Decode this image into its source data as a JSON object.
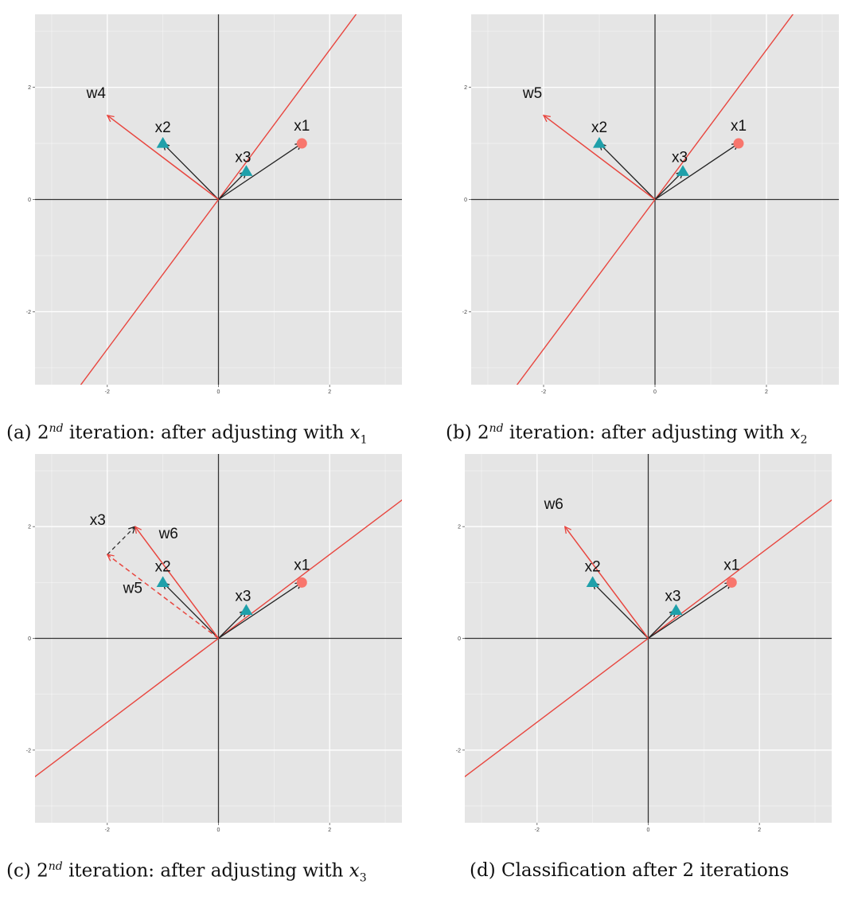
{
  "colors": {
    "panel_bg": "#e5e5e5",
    "grid": "#ffffff",
    "axis": "#333333",
    "red": "#e8463f",
    "point_red": "#f8766d",
    "point_teal": "#1fa0aa",
    "arrow": "#222222"
  },
  "panels": [
    {
      "caption": {
        "prefix": "(a) 2",
        "sup": "nd",
        "middle": " iteration: after adjusting with ",
        "var": "x",
        "sub": "1"
      },
      "chart_data": {
        "type": "scatter",
        "xlim": [
          -3.3,
          3.3
        ],
        "ylim": [
          -3.3,
          3.3
        ],
        "ticks": [
          -2,
          0,
          2
        ],
        "tick_labels": [
          "-2",
          "0",
          "2"
        ],
        "points": [
          {
            "label": "x1",
            "x": 1.5,
            "y": 1.0,
            "shape": "circle"
          },
          {
            "label": "x2",
            "x": -1.0,
            "y": 1.0,
            "shape": "triangle"
          },
          {
            "label": "x3",
            "x": 0.5,
            "y": 0.5,
            "shape": "triangle"
          }
        ],
        "weights": [
          {
            "label": "w4",
            "x": -2.0,
            "y": 1.5,
            "dashed": false
          }
        ],
        "extra_vectors": [],
        "boundary_slope": 1.3333
      }
    },
    {
      "caption": {
        "prefix": "(b) 2",
        "sup": "nd",
        "middle": " iteration: after adjusting with ",
        "var": "x",
        "sub": "2"
      },
      "chart_data": {
        "type": "scatter",
        "xlim": [
          -3.3,
          3.3
        ],
        "ylim": [
          -3.3,
          3.3
        ],
        "ticks": [
          -2,
          0,
          2
        ],
        "tick_labels": [
          "-2",
          "0",
          "2"
        ],
        "points": [
          {
            "label": "x1",
            "x": 1.5,
            "y": 1.0,
            "shape": "circle"
          },
          {
            "label": "x2",
            "x": -1.0,
            "y": 1.0,
            "shape": "triangle"
          },
          {
            "label": "x3",
            "x": 0.5,
            "y": 0.5,
            "shape": "triangle"
          }
        ],
        "weights": [
          {
            "label": "w5",
            "x": -2.0,
            "y": 1.5,
            "dashed": false
          }
        ],
        "extra_vectors": [],
        "boundary_slope": 1.3333
      }
    },
    {
      "caption": {
        "prefix": "(c) 2",
        "sup": "nd",
        "middle": " iteration: after adjusting with ",
        "var": "x",
        "sub": "3"
      },
      "chart_data": {
        "type": "scatter",
        "xlim": [
          -3.3,
          3.3
        ],
        "ylim": [
          -3.3,
          3.3
        ],
        "ticks": [
          -2,
          0,
          2
        ],
        "tick_labels": [
          "-2",
          "0",
          "2"
        ],
        "points": [
          {
            "label": "x1",
            "x": 1.5,
            "y": 1.0,
            "shape": "circle"
          },
          {
            "label": "x2",
            "x": -1.0,
            "y": 1.0,
            "shape": "triangle"
          },
          {
            "label": "x3",
            "x": 0.5,
            "y": 0.5,
            "shape": "triangle"
          }
        ],
        "weights": [
          {
            "label": "w6",
            "x": -1.5,
            "y": 2.0,
            "dashed": false
          },
          {
            "label": "w5",
            "x": -2.0,
            "y": 1.5,
            "dashed": true
          }
        ],
        "extra_vectors": [
          {
            "label": "x3",
            "x0": -2.0,
            "y0": 1.5,
            "x1": -1.5,
            "y1": 2.0
          }
        ],
        "boundary_slope": 0.75
      }
    },
    {
      "caption": {
        "prefix": "(d) Classification after 2 iterations",
        "sup": "",
        "middle": "",
        "var": "",
        "sub": ""
      },
      "chart_data": {
        "type": "scatter",
        "xlim": [
          -3.3,
          3.3
        ],
        "ylim": [
          -3.3,
          3.3
        ],
        "ticks": [
          -2,
          0,
          2
        ],
        "tick_labels": [
          "-2",
          "0",
          "2"
        ],
        "points": [
          {
            "label": "x1",
            "x": 1.5,
            "y": 1.0,
            "shape": "circle"
          },
          {
            "label": "x2",
            "x": -1.0,
            "y": 1.0,
            "shape": "triangle"
          },
          {
            "label": "x3",
            "x": 0.5,
            "y": 0.5,
            "shape": "triangle"
          }
        ],
        "weights": [
          {
            "label": "w6",
            "x": -1.5,
            "y": 2.0,
            "dashed": false
          }
        ],
        "extra_vectors": [],
        "boundary_slope": 0.75
      }
    }
  ]
}
